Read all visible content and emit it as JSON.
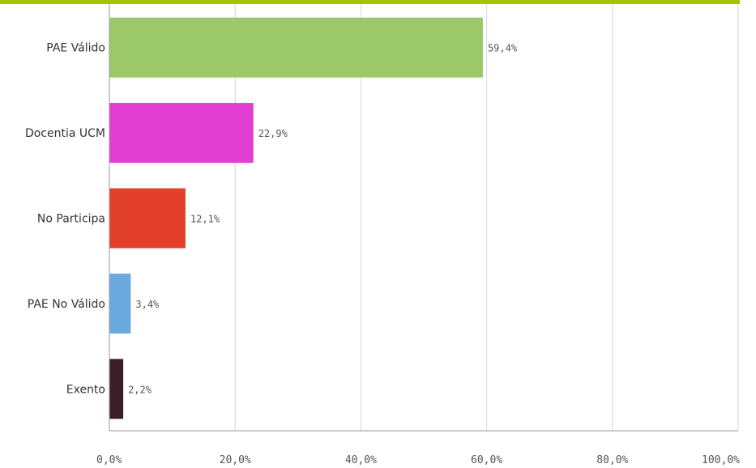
{
  "chart_data": {
    "type": "bar",
    "orientation": "horizontal",
    "title": "",
    "xlabel": "",
    "ylabel": "",
    "categories": [
      "PAE Válido",
      "Docentia UCM",
      "No Participa",
      "PAE No Válido",
      "Exento"
    ],
    "values": [
      59.4,
      22.9,
      12.1,
      3.4,
      2.2
    ],
    "value_labels": [
      "59,4%",
      "22,9%",
      "12,1%",
      "3,4%",
      "2,2%"
    ],
    "colors": [
      "#9bc96a",
      "#e23ed2",
      "#e2402c",
      "#6aaade",
      "#3e1e26"
    ],
    "xlim": [
      0,
      100
    ],
    "ticks": [
      0,
      20,
      40,
      60,
      80,
      100
    ],
    "tick_labels": [
      "0,0%",
      "20,0%",
      "40,0%",
      "60,0%",
      "80,0%",
      "100,0%"
    ],
    "grid": true,
    "accent_color": "#a4c400",
    "legend": "none"
  }
}
